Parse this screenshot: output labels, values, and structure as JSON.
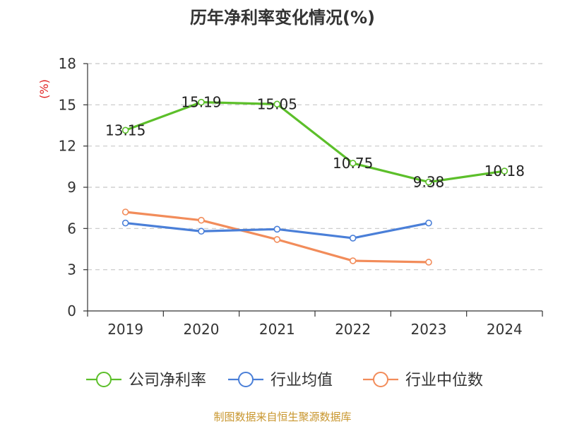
{
  "chart_data": {
    "type": "line",
    "title": "历年净利率变化情况(%)",
    "ylabel": "(%)",
    "xlabel": "",
    "categories": [
      "2019",
      "2020",
      "2021",
      "2022",
      "2023",
      "2024"
    ],
    "ylim": [
      0,
      18
    ],
    "yticks": [
      0,
      3,
      6,
      9,
      12,
      15,
      18
    ],
    "grid": true,
    "legend_position": "bottom",
    "series": [
      {
        "name": "公司净利率",
        "color": "#5cbf2a",
        "values": [
          13.15,
          15.19,
          15.05,
          10.75,
          9.38,
          10.18
        ],
        "labels": [
          "13.15",
          "15.19",
          "15.05",
          "10.75",
          "9.38",
          "10.18"
        ]
      },
      {
        "name": "行业均值",
        "color": "#4a7fd8",
        "values": [
          6.4,
          5.8,
          5.95,
          5.3,
          6.4,
          null
        ]
      },
      {
        "name": "行业中位数",
        "color": "#f28c5a",
        "values": [
          7.2,
          6.6,
          5.2,
          3.65,
          3.55,
          null
        ]
      }
    ],
    "source": "制图数据来自恒生聚源数据库"
  }
}
